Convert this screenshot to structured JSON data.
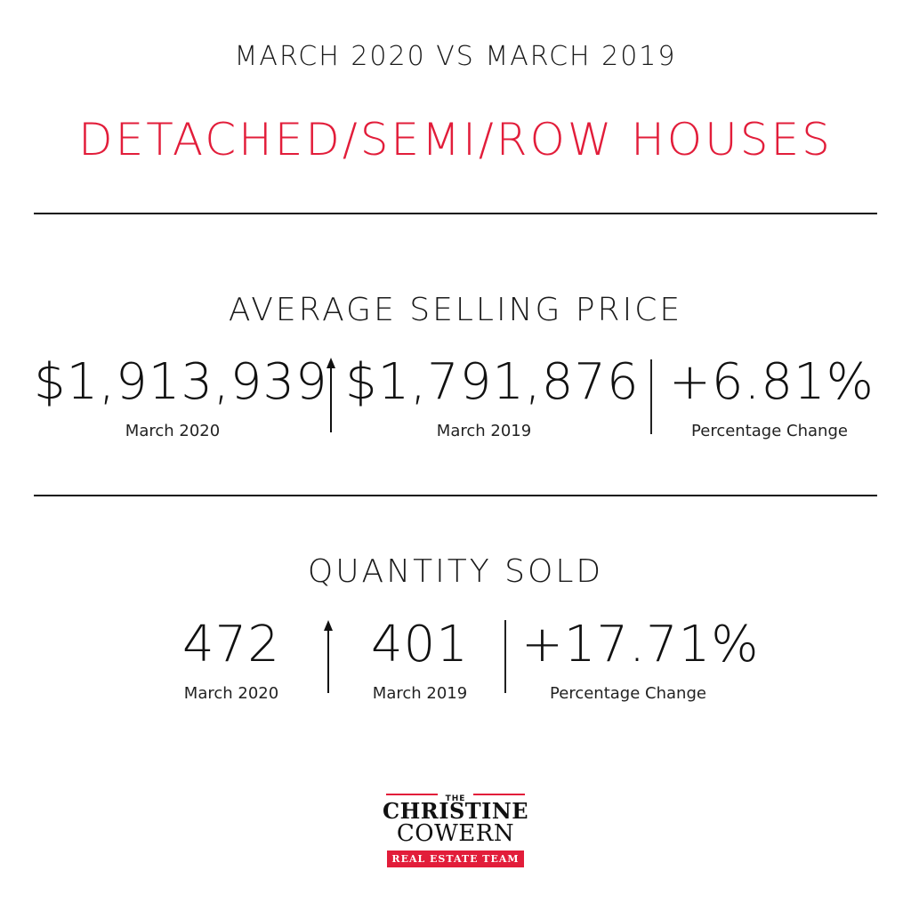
{
  "header": {
    "period": "MARCH 2020 VS MARCH 2019",
    "headline": "DETACHED/SEMI/ROW HOUSES"
  },
  "average_price": {
    "title": "AVERAGE SELLING PRICE",
    "current": {
      "value": "$1,913,939",
      "label": "March 2020"
    },
    "previous": {
      "value": "$1,791,876",
      "label": "March 2019"
    },
    "change": {
      "value": "+6.81%",
      "label": "Percentage Change"
    },
    "trend_icon": "arrow-up-icon"
  },
  "quantity_sold": {
    "title": "QUANTITY SOLD",
    "current": {
      "value": "472",
      "label": "March 2020"
    },
    "previous": {
      "value": "401",
      "label": "March 2019"
    },
    "change": {
      "value": "+17.71%",
      "label": "Percentage Change"
    },
    "trend_icon": "arrow-up-icon"
  },
  "logo": {
    "the": "THE",
    "name_line1": "CHRISTINE",
    "name_line2": "COWERN",
    "tagline": "REAL ESTATE TEAM"
  },
  "colors": {
    "accent": "#e21d3a",
    "text": "#111111",
    "background": "#ffffff"
  }
}
